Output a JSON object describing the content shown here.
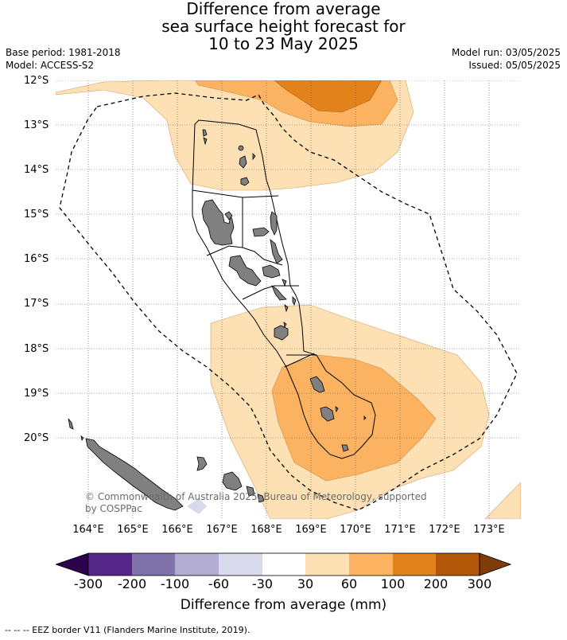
{
  "title": {
    "line1": "Difference from average",
    "line2": "sea surface height forecast for",
    "line3": "10 to 23 May 2025"
  },
  "meta_left": {
    "base_period": "Base period: 1981-2018",
    "model": "Model: ACCESS-S2"
  },
  "meta_right": {
    "model_run": "Model run: 03/05/2025",
    "issued": "Issued: 05/05/2025"
  },
  "axes": {
    "lat_labels": [
      "12°S",
      "13°S",
      "14°S",
      "15°S",
      "16°S",
      "17°S",
      "18°S",
      "19°S",
      "20°S"
    ],
    "lon_labels": [
      "164°E",
      "165°E",
      "166°E",
      "167°E",
      "168°E",
      "169°E",
      "170°E",
      "171°E",
      "172°E",
      "173°E"
    ]
  },
  "colors": {
    "c30_60": "#fde0b4",
    "c60_100": "#fbb362",
    "c100_200": "#e1821a",
    "c200_300": "#b35808",
    "over": "#7f3b08",
    "n30_60": "#d8daeb",
    "n60_100": "#b2abd2",
    "n100_200": "#8073ac",
    "n200_300": "#542788",
    "under": "#2d004b",
    "land": "#808080"
  },
  "colorbar": {
    "labels": [
      "-300",
      "-200",
      "-100",
      "-60",
      "-30",
      "30",
      "60",
      "100",
      "200",
      "300"
    ],
    "title": "Difference from average (mm)"
  },
  "copyright": {
    "line1": "© Commonwealth of Australia 2025, Bureau of Meteorology, supported",
    "line2": "by COSPPac"
  },
  "footer": "--  --  -- EEZ border V11 (Flanders Marine Institute, 2019)."
}
